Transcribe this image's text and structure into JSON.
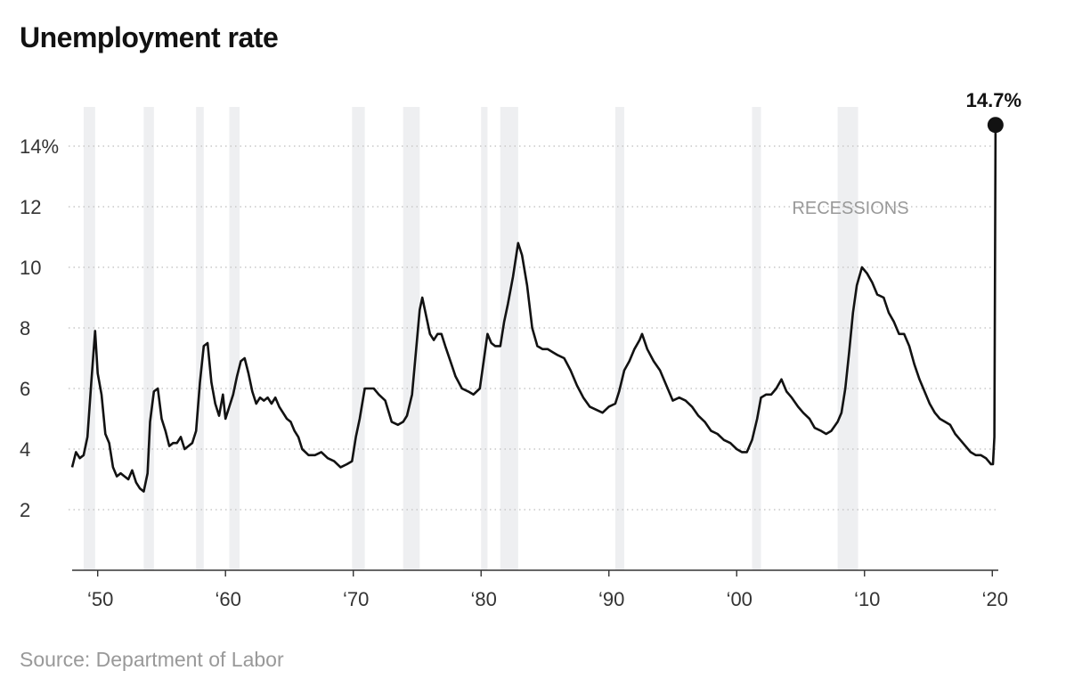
{
  "title": "Unemployment rate",
  "source": "Source: Department of Labor",
  "chart_data": {
    "type": "line",
    "title": "Unemployment rate",
    "xlabel": "",
    "ylabel": "",
    "xlim": [
      1948,
      2020.33
    ],
    "ylim": [
      0,
      15.5
    ],
    "grid": true,
    "y_ticks": [
      {
        "value": 2,
        "label": "2"
      },
      {
        "value": 4,
        "label": "4"
      },
      {
        "value": 6,
        "label": "6"
      },
      {
        "value": 8,
        "label": "8"
      },
      {
        "value": 10,
        "label": "10"
      },
      {
        "value": 12,
        "label": "12"
      },
      {
        "value": 14,
        "label": "14%"
      }
    ],
    "x_ticks": [
      {
        "value": 1950,
        "label": "‘50"
      },
      {
        "value": 1960,
        "label": "‘60"
      },
      {
        "value": 1970,
        "label": "‘70"
      },
      {
        "value": 1980,
        "label": "‘80"
      },
      {
        "value": 1990,
        "label": "‘90"
      },
      {
        "value": 2000,
        "label": "‘00"
      },
      {
        "value": 2010,
        "label": "‘10"
      },
      {
        "value": 2020,
        "label": "‘20"
      }
    ],
    "recession_label": "RECESSIONS",
    "recessions": [
      [
        1948.9,
        1949.8
      ],
      [
        1953.6,
        1954.4
      ],
      [
        1957.7,
        1958.3
      ],
      [
        1960.3,
        1961.1
      ],
      [
        1969.9,
        1970.9
      ],
      [
        1973.9,
        1975.2
      ],
      [
        1980.0,
        1980.5
      ],
      [
        1981.5,
        1982.9
      ],
      [
        1990.5,
        1991.2
      ],
      [
        2001.2,
        2001.9
      ],
      [
        2007.9,
        2009.5
      ]
    ],
    "series": [
      {
        "values": [
          [
            1948.0,
            3.4
          ],
          [
            1948.3,
            3.9
          ],
          [
            1948.6,
            3.7
          ],
          [
            1948.9,
            3.8
          ],
          [
            1949.2,
            4.4
          ],
          [
            1949.5,
            6.2
          ],
          [
            1949.8,
            7.9
          ],
          [
            1950.0,
            6.5
          ],
          [
            1950.3,
            5.8
          ],
          [
            1950.6,
            4.5
          ],
          [
            1950.9,
            4.2
          ],
          [
            1951.2,
            3.4
          ],
          [
            1951.5,
            3.1
          ],
          [
            1951.8,
            3.2
          ],
          [
            1952.1,
            3.1
          ],
          [
            1952.4,
            3.0
          ],
          [
            1952.7,
            3.3
          ],
          [
            1953.0,
            2.9
          ],
          [
            1953.3,
            2.7
          ],
          [
            1953.6,
            2.6
          ],
          [
            1953.9,
            3.2
          ],
          [
            1954.1,
            4.9
          ],
          [
            1954.4,
            5.9
          ],
          [
            1954.7,
            6.0
          ],
          [
            1955.0,
            5.0
          ],
          [
            1955.3,
            4.6
          ],
          [
            1955.6,
            4.1
          ],
          [
            1955.9,
            4.2
          ],
          [
            1956.2,
            4.2
          ],
          [
            1956.5,
            4.4
          ],
          [
            1956.8,
            4.0
          ],
          [
            1957.1,
            4.1
          ],
          [
            1957.4,
            4.2
          ],
          [
            1957.7,
            4.6
          ],
          [
            1958.0,
            6.2
          ],
          [
            1958.3,
            7.4
          ],
          [
            1958.6,
            7.5
          ],
          [
            1958.9,
            6.2
          ],
          [
            1959.2,
            5.5
          ],
          [
            1959.5,
            5.1
          ],
          [
            1959.8,
            5.8
          ],
          [
            1960.0,
            5.0
          ],
          [
            1960.3,
            5.4
          ],
          [
            1960.6,
            5.8
          ],
          [
            1960.9,
            6.4
          ],
          [
            1961.2,
            6.9
          ],
          [
            1961.5,
            7.0
          ],
          [
            1961.8,
            6.5
          ],
          [
            1962.1,
            5.9
          ],
          [
            1962.4,
            5.5
          ],
          [
            1962.7,
            5.7
          ],
          [
            1963.0,
            5.6
          ],
          [
            1963.3,
            5.7
          ],
          [
            1963.6,
            5.5
          ],
          [
            1963.9,
            5.7
          ],
          [
            1964.2,
            5.4
          ],
          [
            1964.5,
            5.2
          ],
          [
            1964.8,
            5.0
          ],
          [
            1965.1,
            4.9
          ],
          [
            1965.4,
            4.6
          ],
          [
            1965.7,
            4.4
          ],
          [
            1966.0,
            4.0
          ],
          [
            1966.5,
            3.8
          ],
          [
            1967.0,
            3.8
          ],
          [
            1967.5,
            3.9
          ],
          [
            1968.0,
            3.7
          ],
          [
            1968.5,
            3.6
          ],
          [
            1969.0,
            3.4
          ],
          [
            1969.5,
            3.5
          ],
          [
            1969.9,
            3.6
          ],
          [
            1970.2,
            4.4
          ],
          [
            1970.5,
            5.0
          ],
          [
            1970.9,
            6.0
          ],
          [
            1971.2,
            6.0
          ],
          [
            1971.6,
            6.0
          ],
          [
            1972.0,
            5.8
          ],
          [
            1972.5,
            5.6
          ],
          [
            1973.0,
            4.9
          ],
          [
            1973.5,
            4.8
          ],
          [
            1973.9,
            4.9
          ],
          [
            1974.2,
            5.1
          ],
          [
            1974.6,
            5.8
          ],
          [
            1974.9,
            7.2
          ],
          [
            1975.2,
            8.6
          ],
          [
            1975.4,
            9.0
          ],
          [
            1975.7,
            8.4
          ],
          [
            1976.0,
            7.8
          ],
          [
            1976.3,
            7.6
          ],
          [
            1976.6,
            7.8
          ],
          [
            1976.9,
            7.8
          ],
          [
            1977.2,
            7.4
          ],
          [
            1977.6,
            6.9
          ],
          [
            1978.0,
            6.4
          ],
          [
            1978.5,
            6.0
          ],
          [
            1979.0,
            5.9
          ],
          [
            1979.4,
            5.8
          ],
          [
            1979.9,
            6.0
          ],
          [
            1980.2,
            6.9
          ],
          [
            1980.5,
            7.8
          ],
          [
            1980.8,
            7.5
          ],
          [
            1981.1,
            7.4
          ],
          [
            1981.5,
            7.4
          ],
          [
            1981.8,
            8.2
          ],
          [
            1982.1,
            8.8
          ],
          [
            1982.5,
            9.7
          ],
          [
            1982.9,
            10.8
          ],
          [
            1983.2,
            10.4
          ],
          [
            1983.6,
            9.4
          ],
          [
            1984.0,
            8.0
          ],
          [
            1984.4,
            7.4
          ],
          [
            1984.8,
            7.3
          ],
          [
            1985.2,
            7.3
          ],
          [
            1985.6,
            7.2
          ],
          [
            1986.0,
            7.1
          ],
          [
            1986.5,
            7.0
          ],
          [
            1987.0,
            6.6
          ],
          [
            1987.5,
            6.1
          ],
          [
            1988.0,
            5.7
          ],
          [
            1988.5,
            5.4
          ],
          [
            1989.0,
            5.3
          ],
          [
            1989.5,
            5.2
          ],
          [
            1990.0,
            5.4
          ],
          [
            1990.5,
            5.5
          ],
          [
            1990.8,
            5.9
          ],
          [
            1991.2,
            6.6
          ],
          [
            1991.6,
            6.9
          ],
          [
            1992.0,
            7.3
          ],
          [
            1992.4,
            7.6
          ],
          [
            1992.6,
            7.8
          ],
          [
            1993.0,
            7.3
          ],
          [
            1993.5,
            6.9
          ],
          [
            1994.0,
            6.6
          ],
          [
            1994.5,
            6.1
          ],
          [
            1995.0,
            5.6
          ],
          [
            1995.5,
            5.7
          ],
          [
            1996.0,
            5.6
          ],
          [
            1996.5,
            5.4
          ],
          [
            1997.0,
            5.1
          ],
          [
            1997.5,
            4.9
          ],
          [
            1998.0,
            4.6
          ],
          [
            1998.5,
            4.5
          ],
          [
            1999.0,
            4.3
          ],
          [
            1999.5,
            4.2
          ],
          [
            2000.0,
            4.0
          ],
          [
            2000.4,
            3.9
          ],
          [
            2000.8,
            3.9
          ],
          [
            2001.2,
            4.3
          ],
          [
            2001.6,
            5.0
          ],
          [
            2001.9,
            5.7
          ],
          [
            2002.3,
            5.8
          ],
          [
            2002.7,
            5.8
          ],
          [
            2003.1,
            6.0
          ],
          [
            2003.5,
            6.3
          ],
          [
            2003.9,
            5.9
          ],
          [
            2004.3,
            5.7
          ],
          [
            2004.8,
            5.4
          ],
          [
            2005.2,
            5.2
          ],
          [
            2005.7,
            5.0
          ],
          [
            2006.1,
            4.7
          ],
          [
            2006.6,
            4.6
          ],
          [
            2007.0,
            4.5
          ],
          [
            2007.4,
            4.6
          ],
          [
            2007.9,
            4.9
          ],
          [
            2008.2,
            5.2
          ],
          [
            2008.5,
            6.0
          ],
          [
            2008.8,
            7.2
          ],
          [
            2009.1,
            8.5
          ],
          [
            2009.4,
            9.4
          ],
          [
            2009.8,
            10.0
          ],
          [
            2010.2,
            9.8
          ],
          [
            2010.6,
            9.5
          ],
          [
            2011.0,
            9.1
          ],
          [
            2011.5,
            9.0
          ],
          [
            2011.9,
            8.5
          ],
          [
            2012.3,
            8.2
          ],
          [
            2012.7,
            7.8
          ],
          [
            2013.1,
            7.8
          ],
          [
            2013.5,
            7.4
          ],
          [
            2013.9,
            6.8
          ],
          [
            2014.3,
            6.3
          ],
          [
            2014.7,
            5.9
          ],
          [
            2015.1,
            5.5
          ],
          [
            2015.5,
            5.2
          ],
          [
            2015.9,
            5.0
          ],
          [
            2016.3,
            4.9
          ],
          [
            2016.7,
            4.8
          ],
          [
            2017.1,
            4.5
          ],
          [
            2017.5,
            4.3
          ],
          [
            2017.9,
            4.1
          ],
          [
            2018.3,
            3.9
          ],
          [
            2018.7,
            3.8
          ],
          [
            2019.1,
            3.8
          ],
          [
            2019.5,
            3.7
          ],
          [
            2019.9,
            3.5
          ],
          [
            2020.05,
            3.5
          ],
          [
            2020.16,
            4.4
          ],
          [
            2020.25,
            14.7
          ]
        ]
      }
    ],
    "annotations": [
      {
        "text": "14.7%",
        "x": 2020.25,
        "y": 14.7
      }
    ]
  }
}
